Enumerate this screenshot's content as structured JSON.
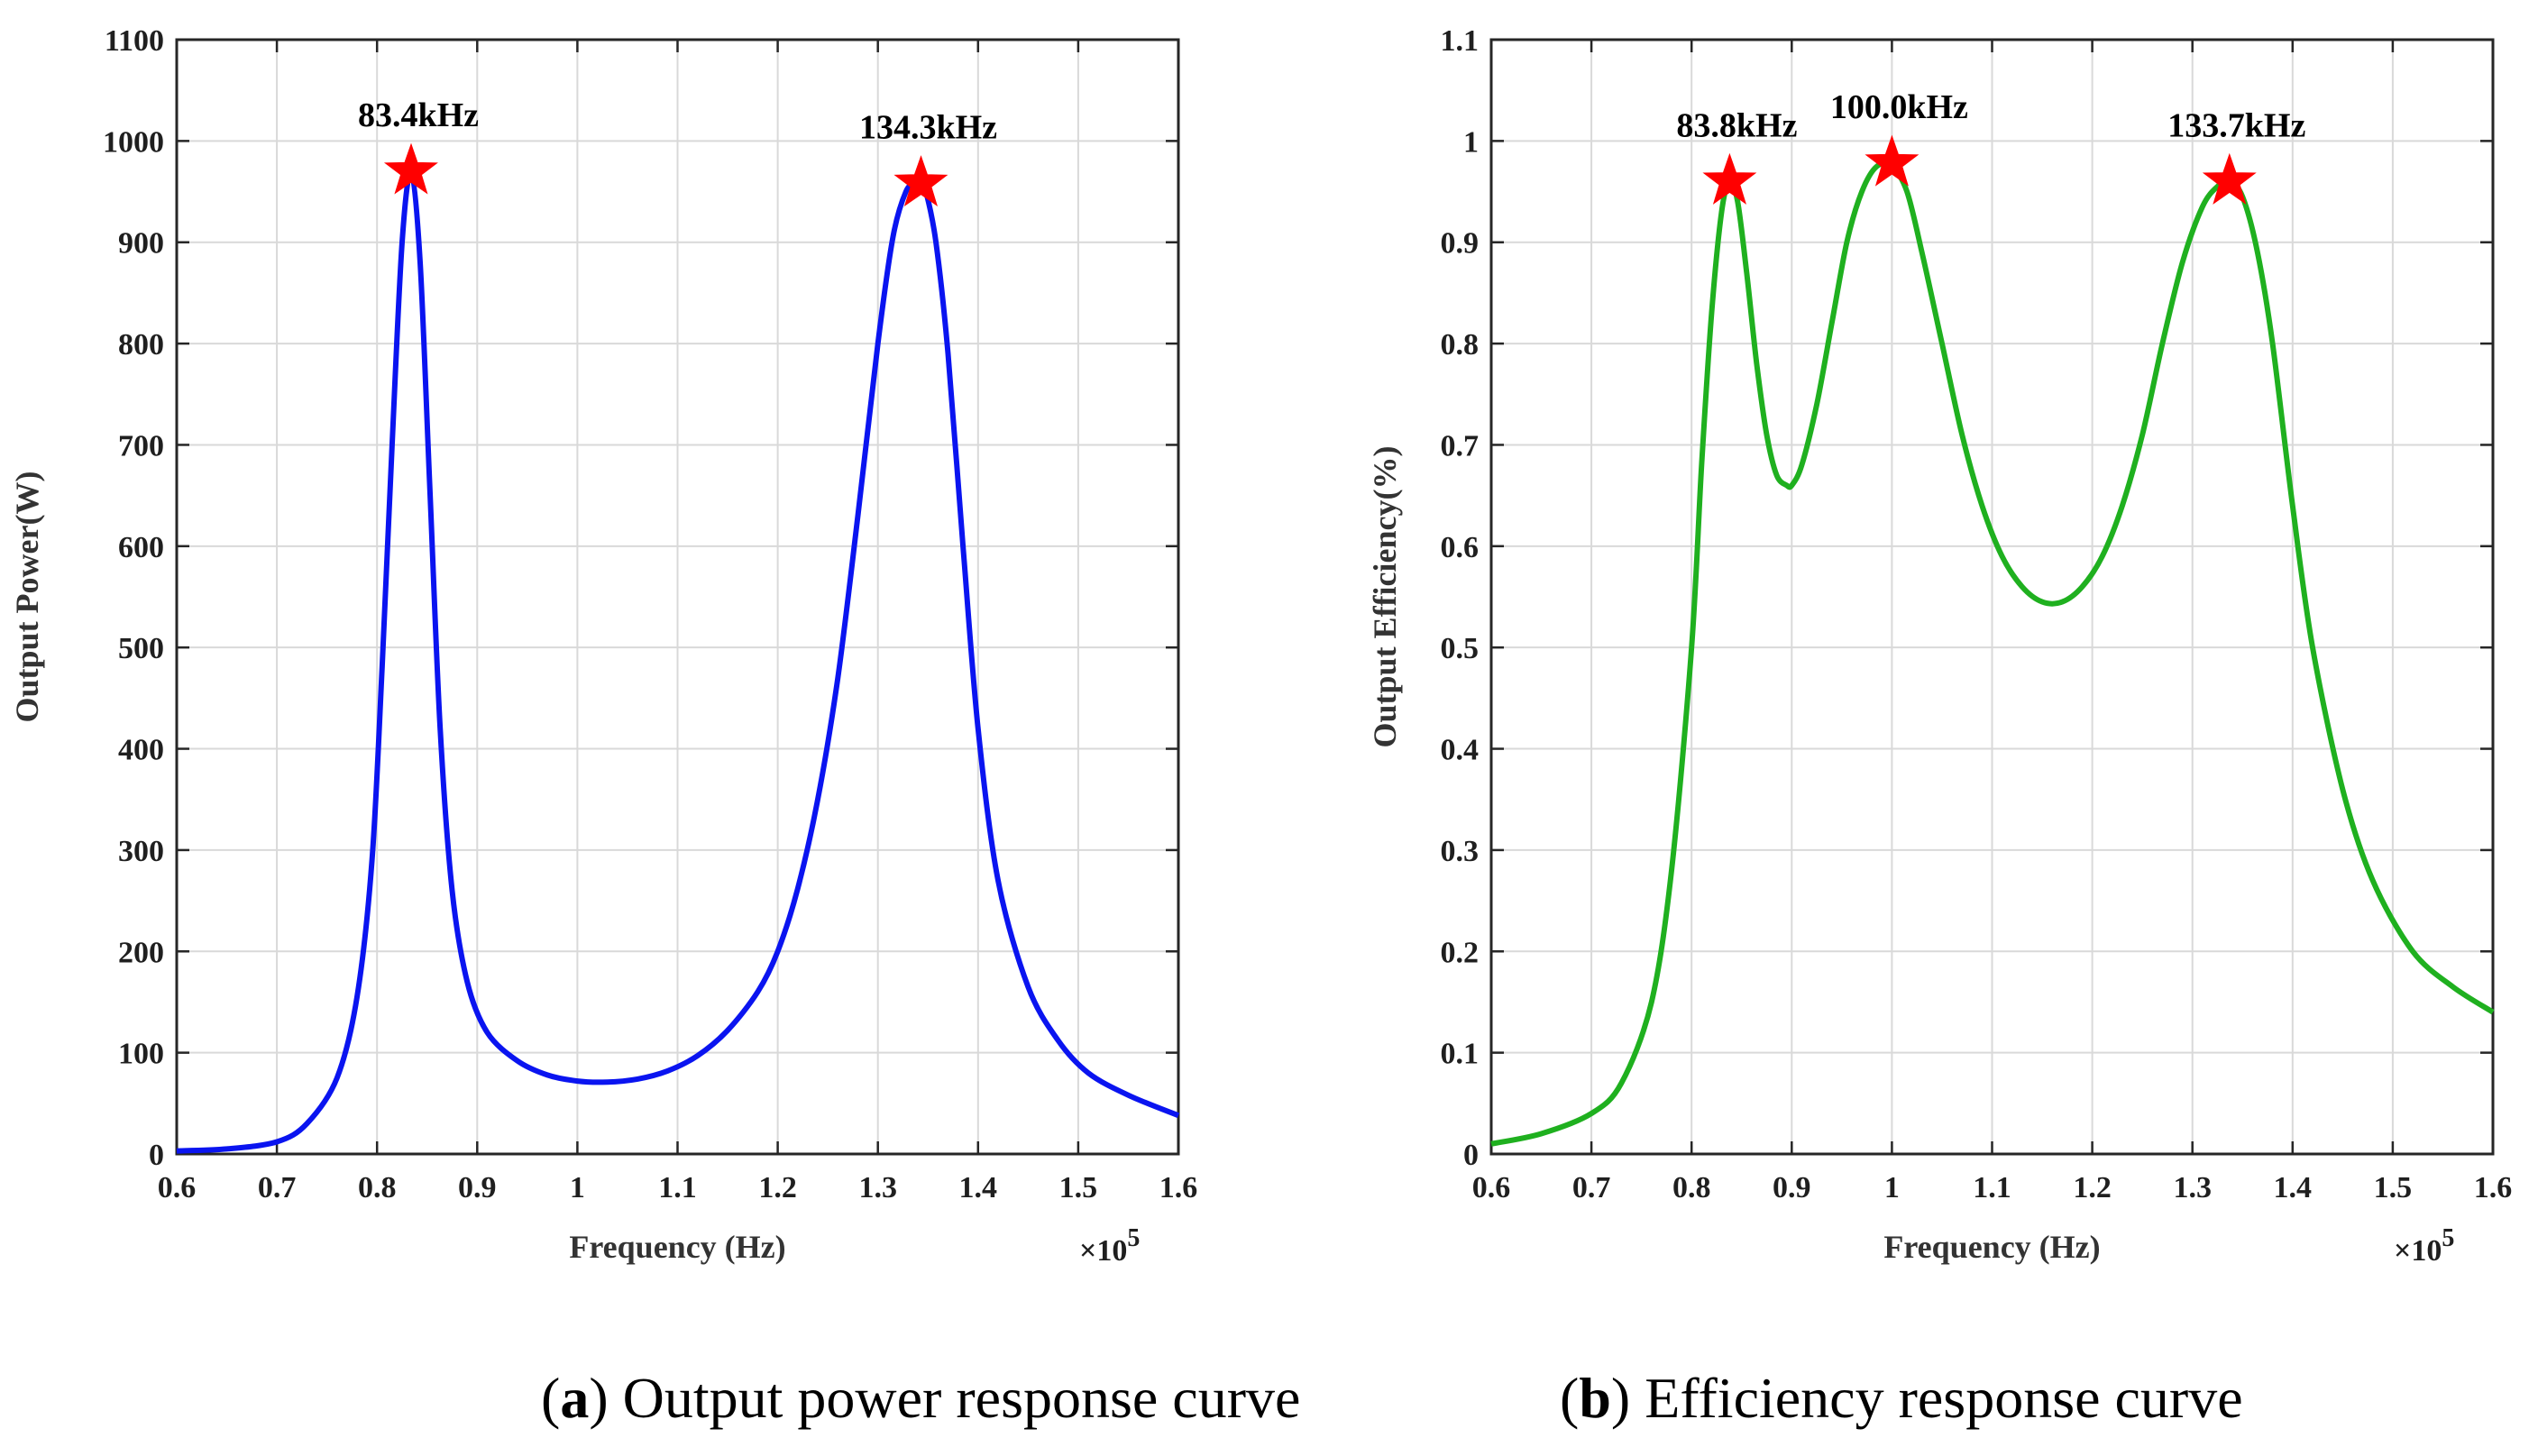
{
  "chart_data": [
    {
      "type": "line",
      "panel": "a",
      "caption_letter": "a",
      "caption_text": "Output power response curve",
      "xlabel": "Frequency (Hz)",
      "ylabel": "Output Power(W)",
      "x_multiplier": "×10",
      "x_exponent": "5",
      "xlim": [
        0.6,
        1.6
      ],
      "ylim": [
        0,
        1100
      ],
      "xticks": [
        0.6,
        0.7,
        0.8,
        0.9,
        1.0,
        1.1,
        1.2,
        1.3,
        1.4,
        1.5,
        1.6
      ],
      "xtick_labels": [
        "0.6",
        "0.7",
        "0.8",
        "0.9",
        "1",
        "1.1",
        "1.2",
        "1.3",
        "1.4",
        "1.5",
        "1.6"
      ],
      "yticks": [
        0,
        100,
        200,
        300,
        400,
        500,
        600,
        700,
        800,
        900,
        1000,
        1100
      ],
      "ytick_labels": [
        "0",
        "100",
        "200",
        "300",
        "400",
        "500",
        "600",
        "700",
        "800",
        "900",
        "1000",
        "1100"
      ],
      "grid": true,
      "series": [
        {
          "name": "Output power",
          "color": "#0a14f0",
          "x": [
            0.6,
            0.65,
            0.7,
            0.73,
            0.76,
            0.78,
            0.795,
            0.805,
            0.815,
            0.825,
            0.834,
            0.843,
            0.853,
            0.863,
            0.875,
            0.89,
            0.91,
            0.94,
            0.97,
            1.0,
            1.03,
            1.06,
            1.09,
            1.12,
            1.15,
            1.18,
            1.2,
            1.22,
            1.24,
            1.26,
            1.28,
            1.3,
            1.315,
            1.328,
            1.338,
            1.343,
            1.348,
            1.358,
            1.37,
            1.385,
            1.4,
            1.42,
            1.45,
            1.48,
            1.51,
            1.55,
            1.6
          ],
          "values": [
            3,
            5,
            12,
            30,
            75,
            155,
            290,
            480,
            700,
            900,
            968,
            880,
            650,
            420,
            260,
            170,
            120,
            92,
            78,
            72,
            71,
            74,
            82,
            97,
            122,
            160,
            200,
            262,
            350,
            470,
            630,
            800,
            905,
            950,
            958,
            958,
            950,
            900,
            790,
            600,
            420,
            270,
            165,
            112,
            80,
            58,
            38
          ]
        }
      ],
      "markers": [
        {
          "x": 0.834,
          "y": 970,
          "label": "83.4kHz",
          "color": "#ff0000"
        },
        {
          "x": 1.343,
          "y": 958,
          "label": "134.3kHz",
          "color": "#ff0000"
        }
      ]
    },
    {
      "type": "line",
      "panel": "b",
      "caption_letter": "b",
      "caption_text": "Efficiency response curve",
      "xlabel": "Frequency (Hz)",
      "ylabel": "Output Efficiency(%)",
      "x_multiplier": "×10",
      "x_exponent": "5",
      "xlim": [
        0.6,
        1.6
      ],
      "ylim": [
        0,
        1.1
      ],
      "xticks": [
        0.6,
        0.7,
        0.8,
        0.9,
        1.0,
        1.1,
        1.2,
        1.3,
        1.4,
        1.5,
        1.6
      ],
      "xtick_labels": [
        "0.6",
        "0.7",
        "0.8",
        "0.9",
        "1",
        "1.1",
        "1.2",
        "1.3",
        "1.4",
        "1.5",
        "1.6"
      ],
      "yticks": [
        0,
        0.1,
        0.2,
        0.3,
        0.4,
        0.5,
        0.6,
        0.7,
        0.8,
        0.9,
        1.0,
        1.1
      ],
      "ytick_labels": [
        "0",
        "0.1",
        "0.2",
        "0.3",
        "0.4",
        "0.5",
        "0.6",
        "0.7",
        "0.8",
        "0.9",
        "1",
        "1.1"
      ],
      "grid": true,
      "series": [
        {
          "name": "Output efficiency",
          "color": "#1fb01f",
          "x": [
            0.6,
            0.65,
            0.7,
            0.73,
            0.76,
            0.78,
            0.8,
            0.81,
            0.82,
            0.83,
            0.838,
            0.846,
            0.855,
            0.865,
            0.875,
            0.885,
            0.895,
            0.9,
            0.91,
            0.925,
            0.94,
            0.955,
            0.97,
            0.985,
            1.0,
            1.015,
            1.03,
            1.05,
            1.07,
            1.09,
            1.11,
            1.13,
            1.15,
            1.17,
            1.19,
            1.21,
            1.23,
            1.25,
            1.27,
            1.29,
            1.31,
            1.325,
            1.337,
            1.35,
            1.365,
            1.38,
            1.4,
            1.42,
            1.45,
            1.48,
            1.52,
            1.56,
            1.6
          ],
          "values": [
            0.01,
            0.02,
            0.04,
            0.07,
            0.15,
            0.28,
            0.5,
            0.68,
            0.83,
            0.93,
            0.96,
            0.94,
            0.87,
            0.78,
            0.71,
            0.67,
            0.66,
            0.66,
            0.68,
            0.74,
            0.82,
            0.9,
            0.95,
            0.975,
            0.975,
            0.95,
            0.89,
            0.8,
            0.71,
            0.64,
            0.59,
            0.56,
            0.545,
            0.545,
            0.56,
            0.59,
            0.64,
            0.71,
            0.8,
            0.88,
            0.935,
            0.955,
            0.96,
            0.945,
            0.89,
            0.8,
            0.64,
            0.5,
            0.36,
            0.27,
            0.2,
            0.165,
            0.14
          ]
        }
      ],
      "markers": [
        {
          "x": 0.838,
          "y": 0.96,
          "label": "83.8kHz",
          "color": "#ff0000"
        },
        {
          "x": 1.0,
          "y": 0.978,
          "label": "100.0kHz",
          "color": "#ff0000"
        },
        {
          "x": 1.337,
          "y": 0.96,
          "label": "133.7kHz",
          "color": "#ff0000"
        }
      ]
    }
  ]
}
